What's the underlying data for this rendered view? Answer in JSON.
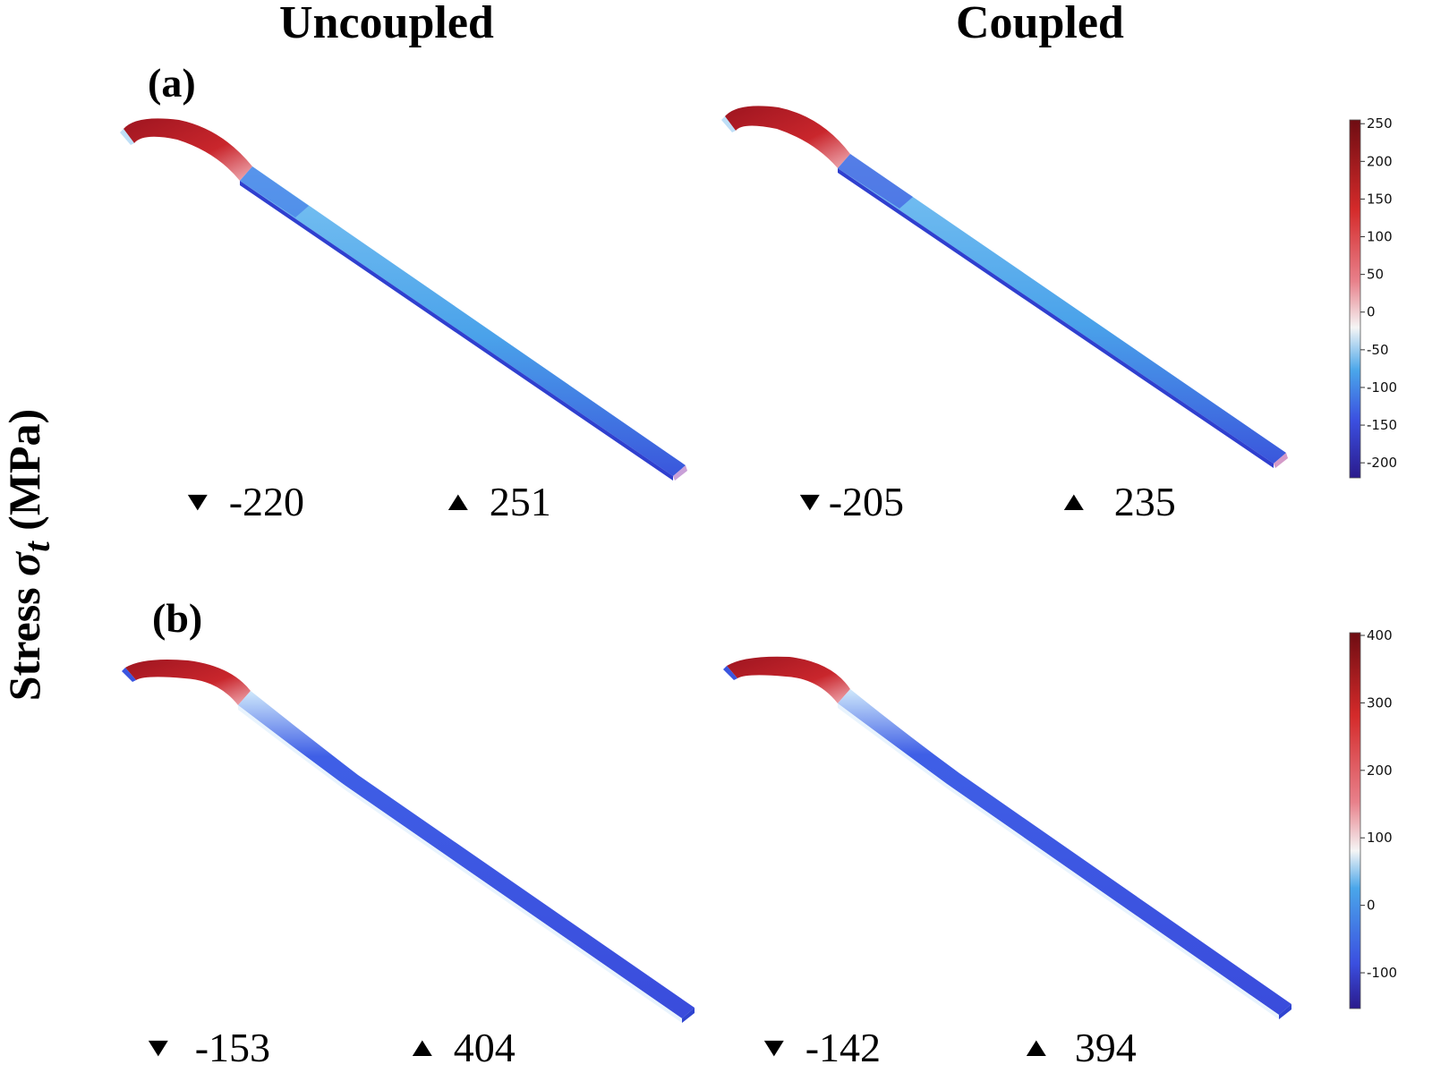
{
  "columns": [
    "Uncoupled",
    "Coupled"
  ],
  "y_axis": {
    "prefix": "Stress ",
    "symbol": "σ",
    "subscript": "t",
    "unit": " (MPa)"
  },
  "colormap": [
    "#2a1a8c",
    "#3b4fe0",
    "#4aa6ea",
    "#f5f5f5",
    "#e8808a",
    "#d42a2a",
    "#6e0c12"
  ],
  "panels": [
    {
      "label": "(a)",
      "colorbar_ticks": [
        "250",
        "200",
        "150",
        "100",
        "50",
        "0",
        "-50",
        "-100",
        "-150",
        "-200"
      ],
      "colorbar_range": [
        -220,
        255
      ],
      "cases": [
        {
          "column": "Uncoupled",
          "min": "-220",
          "max": "251"
        },
        {
          "column": "Coupled",
          "min": "-205",
          "max": "235"
        }
      ]
    },
    {
      "label": "(b)",
      "colorbar_ticks": [
        "400",
        "300",
        "200",
        "100",
        "0",
        "-100"
      ],
      "colorbar_range": [
        -153,
        404
      ],
      "cases": [
        {
          "column": "Uncoupled",
          "min": "-153",
          "max": "404"
        },
        {
          "column": "Coupled",
          "min": "-142",
          "max": "394"
        }
      ]
    }
  ]
}
